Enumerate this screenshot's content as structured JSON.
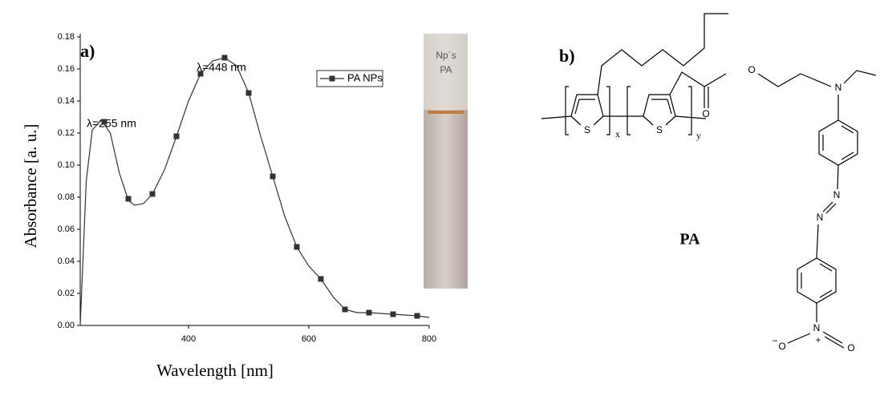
{
  "chart_data": {
    "type": "line",
    "panel_label": "a)",
    "xlabel": "Wavelength [nm]",
    "ylabel": "Absorbance [a. u.]",
    "xlim": [
      220,
      800
    ],
    "ylim": [
      0,
      0.18
    ],
    "xticks": [
      400,
      600,
      800
    ],
    "yticks": [
      {
        "value": 0,
        "label": "0.00"
      },
      {
        "value": 0.02,
        "label": "0.02"
      },
      {
        "value": 0.04,
        "label": "0.04"
      },
      {
        "value": 0.06,
        "label": "0.06"
      },
      {
        "value": 0.08,
        "label": "0.08"
      },
      {
        "value": 0.1,
        "label": "0.10"
      },
      {
        "value": 0.12,
        "label": "0.12"
      },
      {
        "value": 0.14,
        "label": "0.14"
      },
      {
        "value": 0.16,
        "label": "0.16"
      },
      {
        "value": 0.18,
        "label": "0.18"
      }
    ],
    "annotations": [
      "λ=255 nm",
      "λ=448 nm"
    ],
    "legend": "top-right",
    "series": [
      {
        "name": "PA NPs",
        "color": "#333333",
        "x": [
          220,
          230,
          240,
          255,
          270,
          285,
          300,
          310,
          325,
          340,
          360,
          380,
          400,
          420,
          440,
          460,
          480,
          500,
          520,
          540,
          560,
          580,
          600,
          620,
          640,
          660,
          680,
          700,
          740,
          780,
          800
        ],
        "values": [
          0.0,
          0.09,
          0.122,
          0.128,
          0.12,
          0.095,
          0.078,
          0.075,
          0.076,
          0.082,
          0.097,
          0.118,
          0.14,
          0.157,
          0.165,
          0.167,
          0.162,
          0.145,
          0.118,
          0.093,
          0.068,
          0.049,
          0.037,
          0.029,
          0.018,
          0.01,
          0.008,
          0.008,
          0.007,
          0.006,
          0.005
        ],
        "markers": {
          "x": [
            260,
            300,
            340,
            380,
            420,
            460,
            500,
            540,
            580,
            620,
            660,
            700,
            740,
            780
          ],
          "values": [
            0.127,
            0.079,
            0.082,
            0.118,
            0.157,
            0.167,
            0.145,
            0.093,
            0.049,
            0.029,
            0.01,
            0.008,
            0.007,
            0.006
          ]
        }
      }
    ],
    "photo_labels": [
      "Np´s",
      "PA"
    ]
  },
  "structure": {
    "panel_label": "b)",
    "name": "PA",
    "labels": [
      "S",
      "S",
      "x",
      "y",
      "O",
      "O",
      "N",
      "N",
      "N",
      "N",
      "O",
      "O",
      "+",
      "−"
    ]
  }
}
